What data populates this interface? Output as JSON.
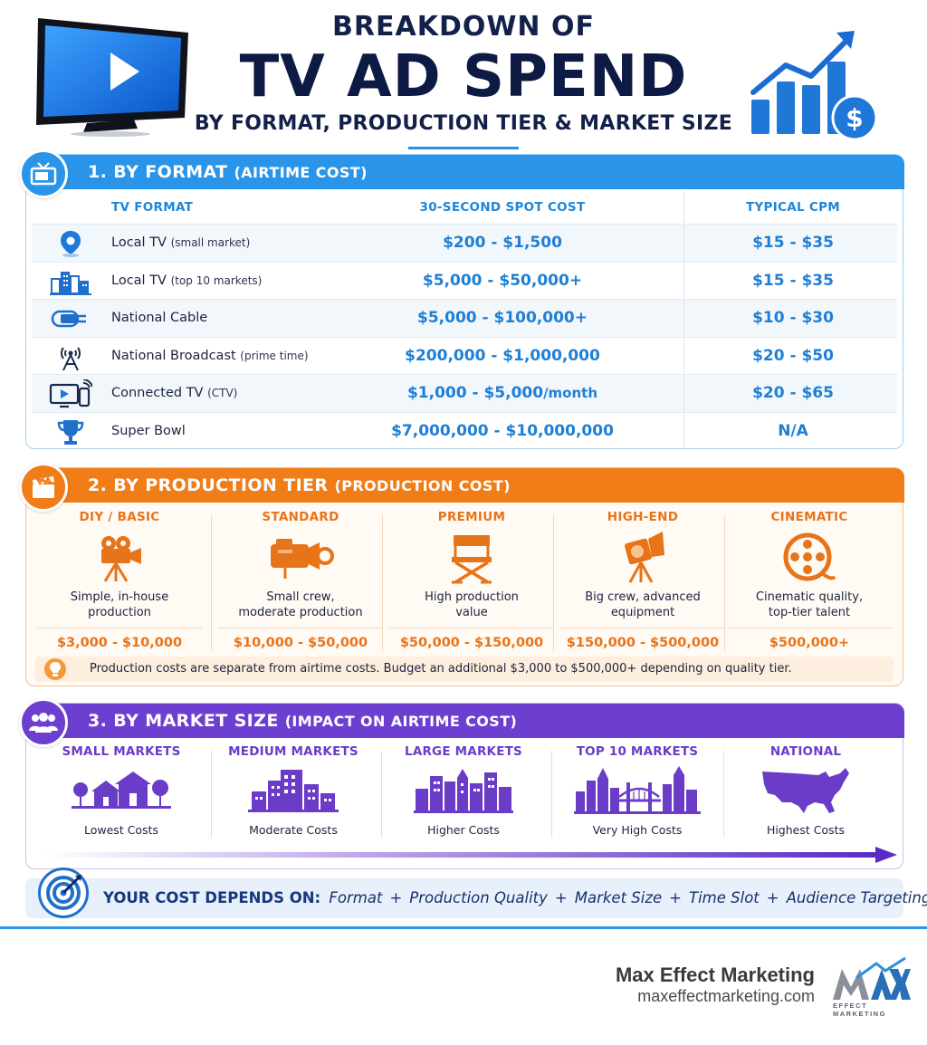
{
  "header": {
    "line1": "BREAKDOWN OF",
    "line2": "TV AD SPEND",
    "line3": "BY FORMAT, PRODUCTION TIER & MARKET SIZE"
  },
  "colors": {
    "blue": "#2a95e8",
    "orange": "#f07d18",
    "purple": "#6d3fd0",
    "navy": "#0c1a44"
  },
  "format_section": {
    "title": "1. BY FORMAT",
    "subtitle": "(AIRTIME COST)",
    "icon": "tv-icon",
    "columns": [
      "TV FORMAT",
      "30-SECOND SPOT COST",
      "TYPICAL CPM"
    ],
    "rows": [
      {
        "icon": "location-pin-icon",
        "name": "Local TV",
        "note": "(small market)",
        "cost": "$200 - $1,500",
        "cost_unit": "",
        "cpm": "$15 - $35"
      },
      {
        "icon": "city-buildings-icon",
        "name": "Local TV",
        "note": "(top 10 markets)",
        "cost": "$5,000 - $50,000+",
        "cost_unit": "",
        "cpm": "$15 - $35"
      },
      {
        "icon": "cable-plug-icon",
        "name": "National Cable",
        "note": "",
        "cost": "$5,000 - $100,000+",
        "cost_unit": "",
        "cpm": "$10 - $30"
      },
      {
        "icon": "broadcast-tower-icon",
        "name": "National Broadcast",
        "note": "(prime time)",
        "cost": "$200,000 - $1,000,000",
        "cost_unit": "",
        "cpm": "$20 - $50"
      },
      {
        "icon": "connected-devices-icon",
        "name": "Connected TV",
        "note": "(CTV)",
        "cost": "$1,000 - $5,000",
        "cost_unit": "/month",
        "cpm": "$20 - $65"
      },
      {
        "icon": "trophy-icon",
        "name": "Super Bowl",
        "note": "",
        "cost": "$7,000,000 - $10,000,000",
        "cost_unit": "",
        "cpm": "N/A"
      }
    ]
  },
  "production_section": {
    "title": "2. BY PRODUCTION TIER",
    "subtitle": "(PRODUCTION COST)",
    "icon": "clapperboard-icon",
    "tiers": [
      {
        "name": "DIY / BASIC",
        "icon": "camera-tripod-icon",
        "desc1": "Simple, in-house",
        "desc2": "production",
        "price": "$3,000 - $10,000"
      },
      {
        "name": "STANDARD",
        "icon": "video-camera-icon",
        "desc1": "Small crew,",
        "desc2": "moderate production",
        "price": "$10,000 - $50,000"
      },
      {
        "name": "PREMIUM",
        "icon": "director-chair-icon",
        "desc1": "High production",
        "desc2": "value",
        "price": "$50,000 - $150,000"
      },
      {
        "name": "HIGH-END",
        "icon": "studio-light-icon",
        "desc1": "Big crew, advanced",
        "desc2": "equipment",
        "price": "$150,000 - $500,000"
      },
      {
        "name": "CINEMATIC",
        "icon": "film-reel-icon",
        "desc1": "Cinematic quality,",
        "desc2": "top-tier talent",
        "price": "$500,000+"
      }
    ],
    "note_icon": "lightbulb-icon",
    "note": "Production costs are separate from airtime costs. Budget an additional $3,000 to $500,000+ depending on quality tier."
  },
  "market_section": {
    "title": "3. BY MARKET SIZE",
    "subtitle": "(IMPACT ON AIRTIME COST)",
    "icon": "people-group-icon",
    "markets": [
      {
        "name": "SMALL MARKETS",
        "icon": "small-town-icon",
        "desc": "Lowest Costs"
      },
      {
        "name": "MEDIUM MARKETS",
        "icon": "medium-city-icon",
        "desc": "Moderate Costs"
      },
      {
        "name": "LARGE MARKETS",
        "icon": "large-city-icon",
        "desc": "Higher Costs"
      },
      {
        "name": "TOP 10 MARKETS",
        "icon": "skyline-bridge-icon",
        "desc": "Very High Costs"
      },
      {
        "name": "NATIONAL",
        "icon": "us-map-icon",
        "desc": "Highest Costs"
      }
    ]
  },
  "summary": {
    "icon": "target-icon",
    "lead": "YOUR COST DEPENDS ON:",
    "items": [
      "Format",
      "Production Quality",
      "Market Size",
      "Time Slot",
      "Audience Targeting"
    ],
    "separator": "+"
  },
  "footer": {
    "brand": "Max Effect Marketing",
    "url": "maxeffectmarketing.com",
    "logo_word": "MAX",
    "logo_sub": "EFFECT MARKETING"
  }
}
